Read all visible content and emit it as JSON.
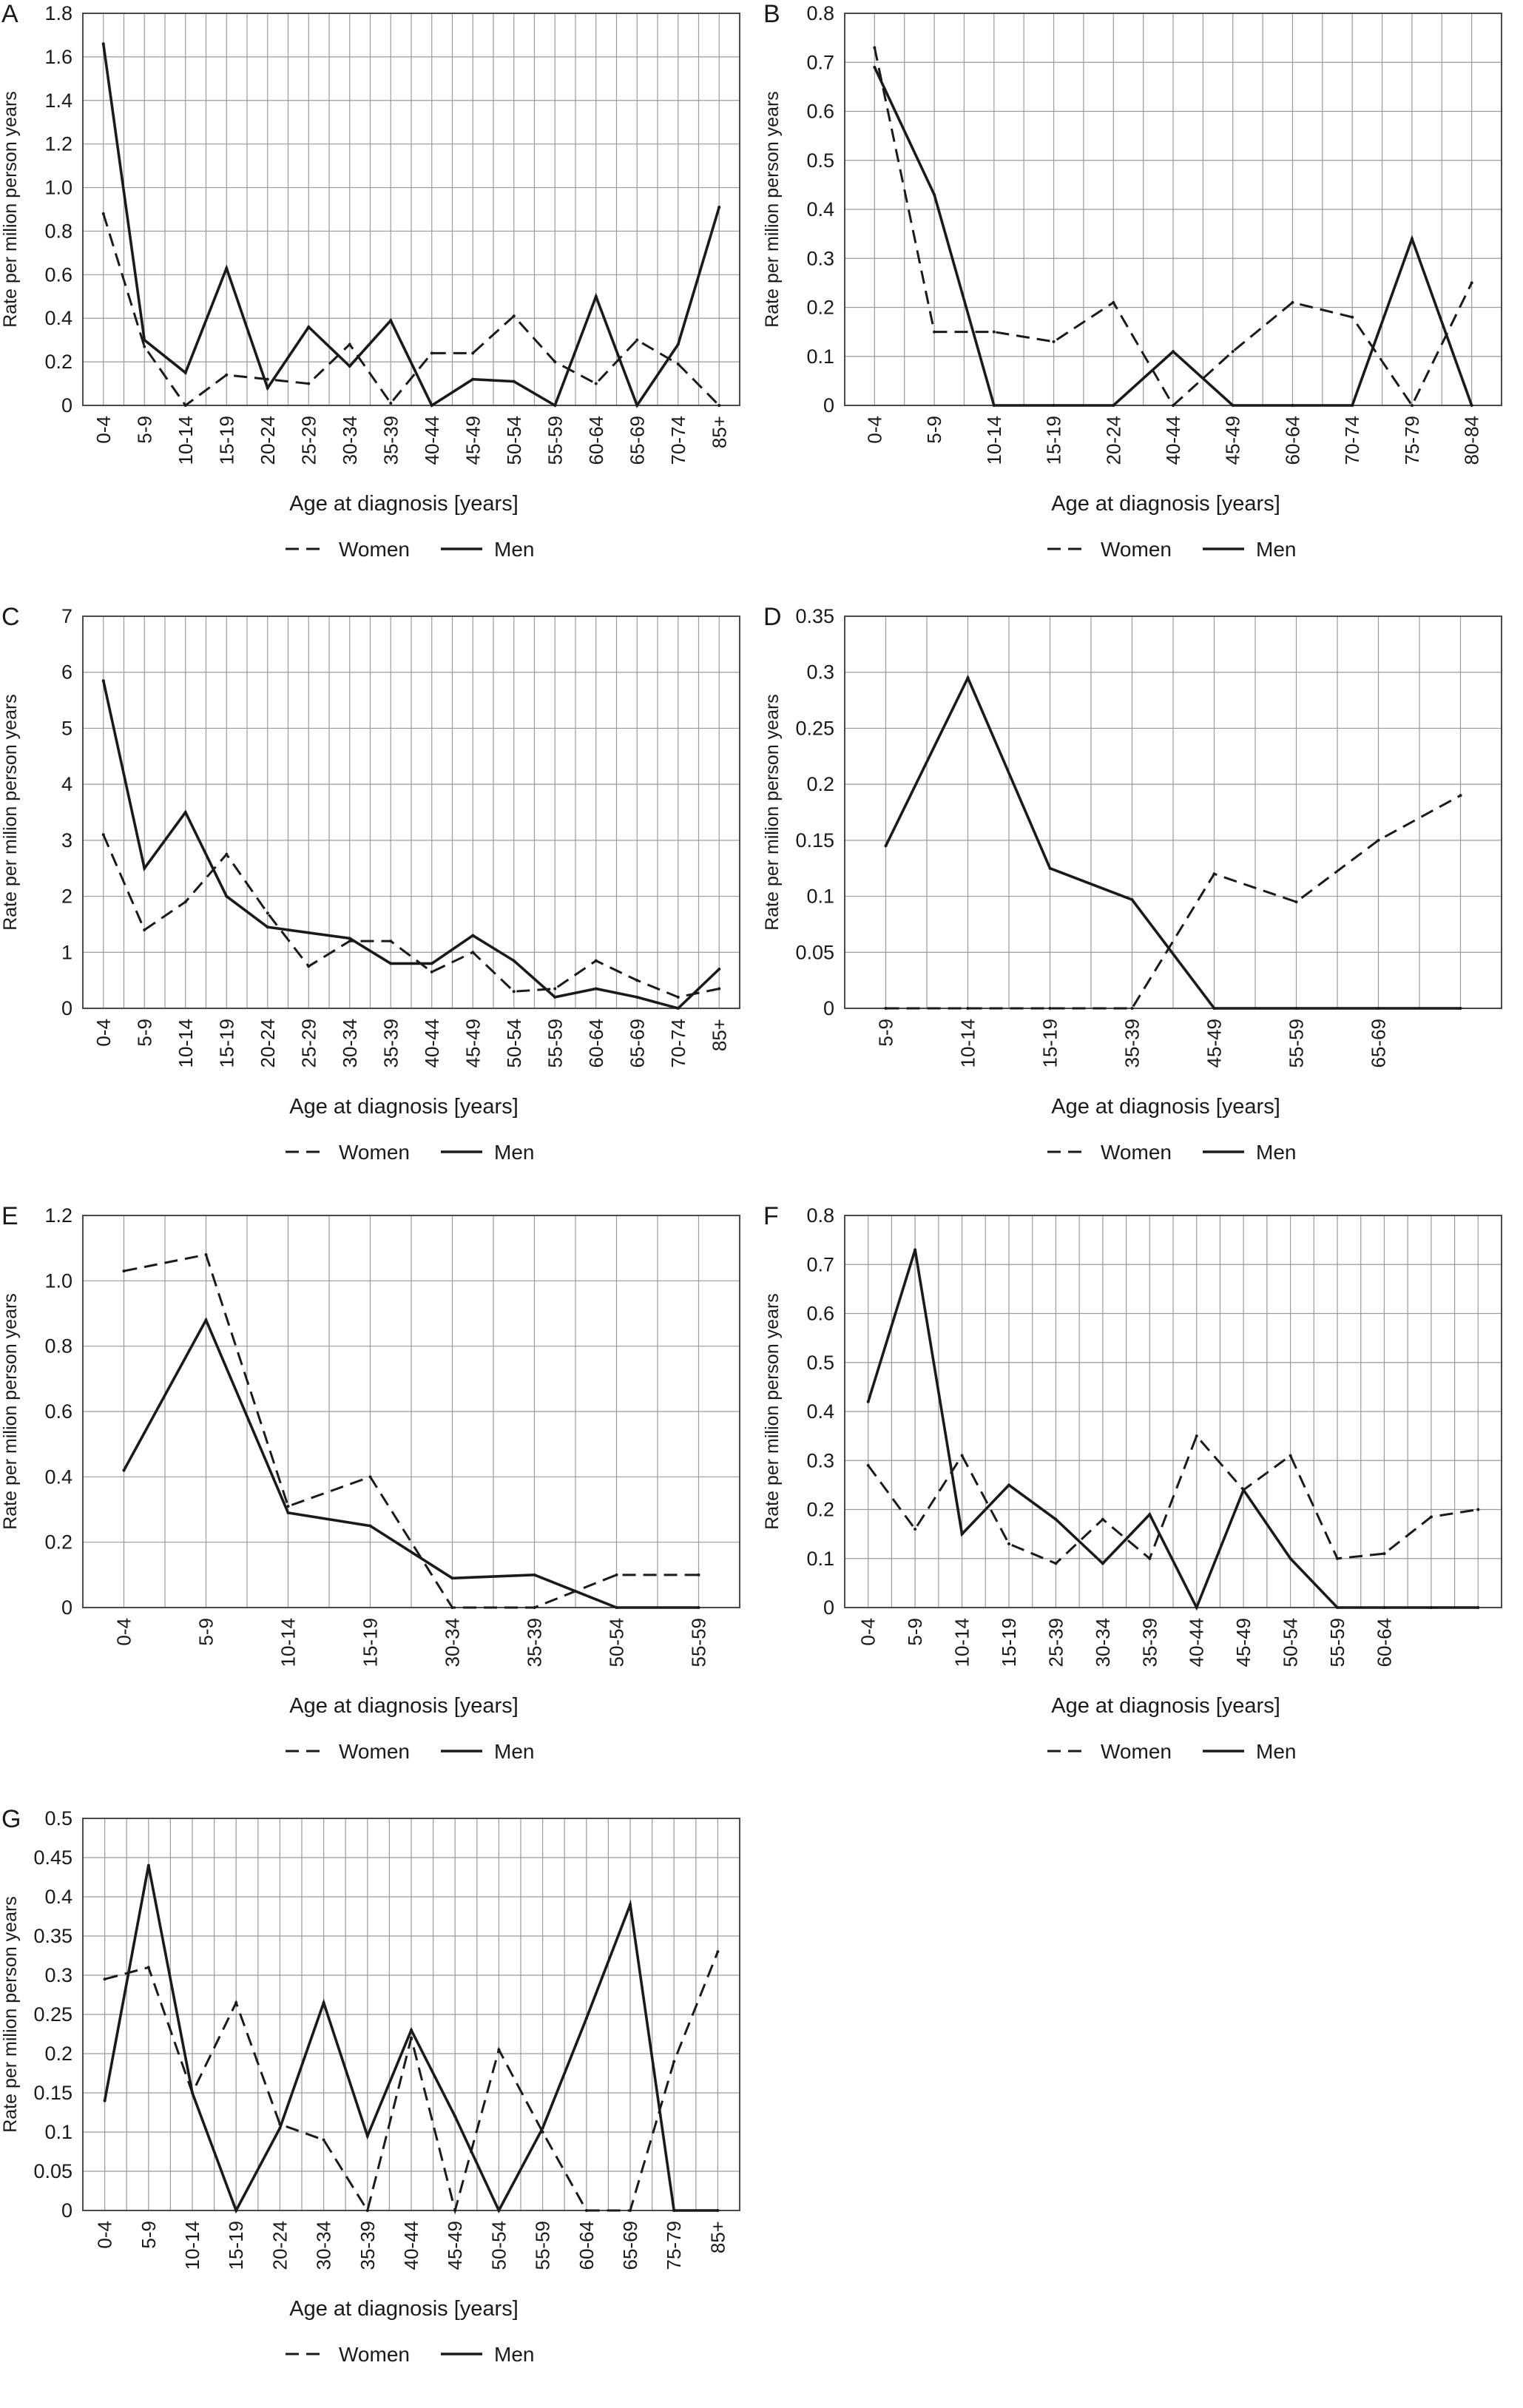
{
  "figure": {
    "women_label": "Women",
    "men_label": "Men",
    "xlabel": "Age at diagnosis [years]",
    "ylabel": "Rate per milion person years"
  },
  "chart_data": [
    {
      "panel": "A",
      "type": "line",
      "title": "",
      "xlabel": "Age at diagnosis [years]",
      "ylabel": "Rate per milion person years",
      "ylim": [
        0,
        1.8
      ],
      "yticks": [
        0,
        0.2,
        0.4,
        0.6,
        0.8,
        1.0,
        1.2,
        1.4,
        1.6,
        1.8
      ],
      "ytick_labels": [
        "0",
        "0.2",
        "0.4",
        "0.6",
        "0.8",
        "1.0",
        "1.2",
        "1.4",
        "1.6",
        "1.8"
      ],
      "categories": [
        "0-4",
        "5-9",
        "10-14",
        "15-19",
        "20-24",
        "25-29",
        "30-34",
        "35-39",
        "40-44",
        "45-49",
        "50-54",
        "55-59",
        "60-64",
        "65-69",
        "70-74",
        "85+"
      ],
      "series": [
        {
          "name": "Women",
          "style": "dashed",
          "values": [
            0.88,
            0.27,
            0.0,
            0.14,
            0.12,
            0.1,
            0.28,
            0.01,
            0.24,
            0.24,
            0.41,
            0.2,
            0.1,
            0.3,
            0.19,
            0.0
          ]
        },
        {
          "name": "Men",
          "style": "solid",
          "values": [
            1.66,
            0.3,
            0.15,
            0.63,
            0.08,
            0.36,
            0.18,
            0.39,
            0.0,
            0.12,
            0.11,
            0.0,
            0.5,
            0.0,
            0.28,
            0.91
          ]
        }
      ],
      "legend": "bottom",
      "grid": true
    },
    {
      "panel": "B",
      "type": "line",
      "title": "",
      "xlabel": "Age at diagnosis [years]",
      "ylabel": "Rate per milion person years",
      "ylim": [
        0,
        0.8
      ],
      "yticks": [
        0,
        0.1,
        0.2,
        0.3,
        0.4,
        0.5,
        0.6,
        0.7,
        0.8
      ],
      "ytick_labels": [
        "0",
        "0.1",
        "0.2",
        "0.3",
        "0.4",
        "0.5",
        "0.6",
        "0.7",
        "0.8"
      ],
      "categories": [
        "0-4",
        "5-9",
        "10-14",
        "15-19",
        "20-24",
        "40-44",
        "45-49",
        "60-64",
        "70-74",
        "75-79",
        "80-84"
      ],
      "series": [
        {
          "name": "Women",
          "style": "dashed",
          "values": [
            0.73,
            0.15,
            0.15,
            0.13,
            0.21,
            0.0,
            0.11,
            0.21,
            0.18,
            0.0,
            0.25
          ]
        },
        {
          "name": "Men",
          "style": "solid",
          "values": [
            0.69,
            0.43,
            0.0,
            0.0,
            0.0,
            0.11,
            0.0,
            0.0,
            0.0,
            0.34,
            0.0
          ]
        }
      ],
      "legend": "bottom",
      "grid": true
    },
    {
      "panel": "C",
      "type": "line",
      "title": "",
      "xlabel": "Age at diagnosis [years]",
      "ylabel": "Rate per milion person years",
      "ylim": [
        0,
        7
      ],
      "yticks": [
        0,
        1,
        2,
        3,
        4,
        5,
        6,
        7
      ],
      "ytick_labels": [
        "0",
        "1",
        "2",
        "3",
        "4",
        "5",
        "6",
        "7"
      ],
      "categories": [
        "0-4",
        "5-9",
        "10-14",
        "15-19",
        "20-24",
        "25-29",
        "30-34",
        "35-39",
        "40-44",
        "45-49",
        "50-54",
        "55-59",
        "60-64",
        "65-69",
        "70-74",
        "85+"
      ],
      "series": [
        {
          "name": "Women",
          "style": "dashed",
          "values": [
            3.1,
            1.4,
            1.9,
            2.75,
            1.7,
            0.75,
            1.2,
            1.2,
            0.65,
            1.0,
            0.3,
            0.35,
            0.85,
            0.5,
            0.2,
            0.35
          ]
        },
        {
          "name": "Men",
          "style": "solid",
          "values": [
            5.85,
            2.5,
            3.5,
            2.0,
            1.45,
            1.35,
            1.25,
            0.8,
            0.8,
            1.3,
            0.85,
            0.2,
            0.35,
            0.2,
            0.0,
            0.7
          ]
        }
      ],
      "legend": "bottom",
      "grid": true
    },
    {
      "panel": "D",
      "type": "line",
      "title": "",
      "xlabel": "Age at diagnosis [years]",
      "ylabel": "Rate per milion person years",
      "ylim": [
        0,
        0.35
      ],
      "yticks": [
        0,
        0.05,
        0.1,
        0.15,
        0.2,
        0.25,
        0.3,
        0.35
      ],
      "ytick_labels": [
        "0",
        "0.05",
        "0.1",
        "0.15",
        "0.2",
        "0.25",
        "0.3",
        "0.35"
      ],
      "categories": [
        "5-9",
        "10-14",
        "15-19",
        "35-39",
        "45-49",
        "55-59",
        "65-69",
        ""
      ],
      "series": [
        {
          "name": "Women",
          "style": "dashed",
          "values": [
            0.0,
            0.0,
            0.0,
            0.0,
            0.12,
            0.095,
            0.15,
            0.19
          ]
        },
        {
          "name": "Men",
          "style": "solid",
          "values": [
            0.145,
            0.295,
            0.125,
            0.097,
            0.0,
            0.0,
            0.0,
            0.0
          ]
        }
      ],
      "legend": "bottom",
      "grid": true
    },
    {
      "panel": "E",
      "type": "line",
      "title": "",
      "xlabel": "Age at diagnosis [years]",
      "ylabel": "Rate per milion person years",
      "ylim": [
        0,
        1.2
      ],
      "yticks": [
        0,
        0.2,
        0.4,
        0.6,
        0.8,
        1.0,
        1.2
      ],
      "ytick_labels": [
        "0",
        "0.2",
        "0.4",
        "0.6",
        "0.8",
        "1.0",
        "1.2"
      ],
      "categories": [
        "0-4",
        "5-9",
        "10-14",
        "15-19",
        "30-34",
        "35-39",
        "50-54",
        "55-59"
      ],
      "series": [
        {
          "name": "Women",
          "style": "dashed",
          "values": [
            1.03,
            1.08,
            0.31,
            0.4,
            0.0,
            0.0,
            0.1,
            0.1
          ]
        },
        {
          "name": "Men",
          "style": "solid",
          "values": [
            0.42,
            0.88,
            0.29,
            0.25,
            0.09,
            0.1,
            0.0,
            0.0
          ]
        }
      ],
      "legend": "bottom",
      "grid": true
    },
    {
      "panel": "F",
      "type": "line",
      "title": "",
      "xlabel": "Age at diagnosis [years]",
      "ylabel": "Rate per milion person years",
      "ylim": [
        0,
        0.8
      ],
      "yticks": [
        0,
        0.1,
        0.2,
        0.3,
        0.4,
        0.5,
        0.6,
        0.7,
        0.8
      ],
      "ytick_labels": [
        "0",
        "0.1",
        "0.2",
        "0.3",
        "0.4",
        "0.5",
        "0.6",
        "0.7",
        "0.8"
      ],
      "categories": [
        "0-4",
        "5-9",
        "10-14",
        "15-19",
        "25-39",
        "30-34",
        "35-39",
        "40-44",
        "45-49",
        "50-54",
        "55-59",
        "60-64",
        "",
        ""
      ],
      "series": [
        {
          "name": "Women",
          "style": "dashed",
          "values": [
            0.29,
            0.16,
            0.31,
            0.13,
            0.09,
            0.18,
            0.1,
            0.35,
            0.24,
            0.31,
            0.1,
            0.11,
            0.185,
            0.2
          ]
        },
        {
          "name": "Men",
          "style": "solid",
          "values": [
            0.42,
            0.73,
            0.15,
            0.25,
            0.18,
            0.09,
            0.19,
            0.0,
            0.24,
            0.1,
            0.0,
            0.0,
            0.0,
            0.0
          ]
        }
      ],
      "legend": "bottom",
      "grid": true
    },
    {
      "panel": "G",
      "type": "line",
      "title": "",
      "xlabel": "Age at diagnosis [years]",
      "ylabel": "Rate per milion person years",
      "ylim": [
        0,
        0.5
      ],
      "yticks": [
        0,
        0.05,
        0.1,
        0.15,
        0.2,
        0.25,
        0.3,
        0.35,
        0.4,
        0.45,
        0.5
      ],
      "ytick_labels": [
        "0",
        "0.05",
        "0.1",
        "0.15",
        "0.2",
        "0.25",
        "0.3",
        "0.35",
        "0.4",
        "0.45",
        "0.5"
      ],
      "categories": [
        "0-4",
        "5-9",
        "10-14",
        "15-19",
        "20-24",
        "30-34",
        "35-39",
        "40-44",
        "45-49",
        "50-54",
        "55-59",
        "60-64",
        "65-69",
        "75-79",
        "85+"
      ],
      "series": [
        {
          "name": "Women",
          "style": "dashed",
          "values": [
            0.295,
            0.31,
            0.15,
            0.265,
            0.11,
            0.09,
            0.0,
            0.22,
            0.0,
            0.205,
            0.1,
            0.0,
            0.0,
            0.19,
            0.33
          ]
        },
        {
          "name": "Men",
          "style": "solid",
          "values": [
            0.14,
            0.44,
            0.15,
            0.0,
            0.105,
            0.265,
            0.095,
            0.23,
            0.12,
            0.0,
            0.105,
            0.245,
            0.39,
            0.0,
            0.0
          ]
        }
      ],
      "legend": "bottom",
      "grid": true
    }
  ]
}
